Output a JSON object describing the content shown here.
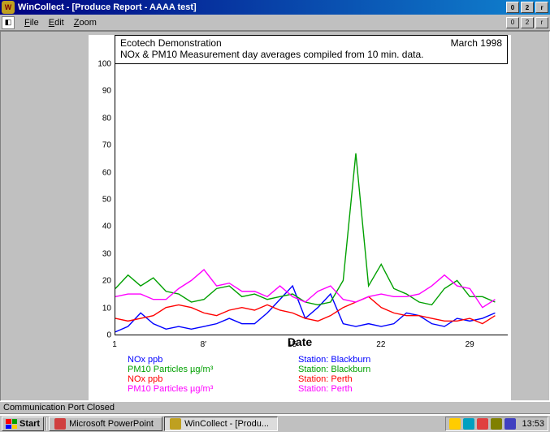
{
  "window": {
    "title": "WinCollect - [Produce Report - AAAA test]",
    "minimize": "_",
    "maximize": "❐",
    "close": "✕"
  },
  "menu": {
    "file": "File",
    "edit": "Edit",
    "zoom": "Zoom"
  },
  "mdi": {
    "minimize": "_",
    "restore": "❐",
    "close": "✕"
  },
  "chart": {
    "title_left": "Ecotech Demonstration",
    "title_right": "March 1998",
    "subtitle": "NOx & PM10 Measurement day averages compiled from 10 min. data.",
    "ylim": [
      0,
      100
    ],
    "ytick_step": 10,
    "xlabel": "Date",
    "xticks": [
      1,
      8,
      15,
      22,
      29
    ],
    "xdomain": [
      1,
      32
    ],
    "series": [
      {
        "name": "NOx ppb",
        "station": "Station: Blackburn",
        "color": "#0000ff",
        "points": [
          [
            1,
            1
          ],
          [
            2,
            3
          ],
          [
            3,
            8
          ],
          [
            4,
            4
          ],
          [
            5,
            2
          ],
          [
            6,
            3
          ],
          [
            7,
            2
          ],
          [
            8,
            3
          ],
          [
            9,
            4
          ],
          [
            10,
            6
          ],
          [
            11,
            4
          ],
          [
            12,
            4
          ],
          [
            13,
            8
          ],
          [
            14,
            13
          ],
          [
            15,
            18
          ],
          [
            16,
            6
          ],
          [
            17,
            10
          ],
          [
            18,
            15
          ],
          [
            19,
            4
          ],
          [
            20,
            3
          ],
          [
            21,
            4
          ],
          [
            22,
            3
          ],
          [
            23,
            4
          ],
          [
            24,
            8
          ],
          [
            25,
            7
          ],
          [
            26,
            4
          ],
          [
            27,
            3
          ],
          [
            28,
            6
          ],
          [
            29,
            5
          ],
          [
            30,
            6
          ],
          [
            31,
            8
          ]
        ]
      },
      {
        "name": "PM10 Particles  µg/m³",
        "station": "Station: Blackburn",
        "color": "#00a000",
        "points": [
          [
            1,
            17
          ],
          [
            2,
            22
          ],
          [
            3,
            18
          ],
          [
            4,
            21
          ],
          [
            5,
            16
          ],
          [
            6,
            15
          ],
          [
            7,
            12
          ],
          [
            8,
            13
          ],
          [
            9,
            17
          ],
          [
            10,
            18
          ],
          [
            11,
            14
          ],
          [
            12,
            15
          ],
          [
            13,
            13
          ],
          [
            14,
            14
          ],
          [
            15,
            15
          ],
          [
            16,
            12
          ],
          [
            17,
            11
          ],
          [
            18,
            12
          ],
          [
            19,
            20
          ],
          [
            20,
            67
          ],
          [
            21,
            18
          ],
          [
            22,
            26
          ],
          [
            23,
            17
          ],
          [
            24,
            15
          ],
          [
            25,
            12
          ],
          [
            26,
            11
          ],
          [
            27,
            17
          ],
          [
            28,
            20
          ],
          [
            29,
            14
          ],
          [
            30,
            14
          ],
          [
            31,
            12
          ]
        ]
      },
      {
        "name": "NOx ppb",
        "station": "Station: Perth",
        "color": "#ff0000",
        "points": [
          [
            1,
            6
          ],
          [
            2,
            5
          ],
          [
            3,
            6
          ],
          [
            4,
            7
          ],
          [
            5,
            10
          ],
          [
            6,
            11
          ],
          [
            7,
            10
          ],
          [
            8,
            8
          ],
          [
            9,
            7
          ],
          [
            10,
            9
          ],
          [
            11,
            10
          ],
          [
            12,
            9
          ],
          [
            13,
            11
          ],
          [
            14,
            9
          ],
          [
            15,
            8
          ],
          [
            16,
            6
          ],
          [
            17,
            5
          ],
          [
            18,
            7
          ],
          [
            19,
            10
          ],
          [
            20,
            12
          ],
          [
            21,
            14
          ],
          [
            22,
            10
          ],
          [
            23,
            8
          ],
          [
            24,
            7
          ],
          [
            25,
            7
          ],
          [
            26,
            6
          ],
          [
            27,
            5
          ],
          [
            28,
            5
          ],
          [
            29,
            6
          ],
          [
            30,
            4
          ],
          [
            31,
            7
          ]
        ]
      },
      {
        "name": "PM10 Particles  µg/m³",
        "station": "Station: Perth",
        "color": "#ff00ff",
        "points": [
          [
            1,
            14
          ],
          [
            2,
            15
          ],
          [
            3,
            15
          ],
          [
            4,
            13
          ],
          [
            5,
            13
          ],
          [
            6,
            17
          ],
          [
            7,
            20
          ],
          [
            8,
            24
          ],
          [
            9,
            18
          ],
          [
            10,
            19
          ],
          [
            11,
            16
          ],
          [
            12,
            16
          ],
          [
            13,
            14
          ],
          [
            14,
            18
          ],
          [
            15,
            14
          ],
          [
            16,
            12
          ],
          [
            17,
            16
          ],
          [
            18,
            18
          ],
          [
            19,
            13
          ],
          [
            20,
            12
          ],
          [
            21,
            14
          ],
          [
            22,
            15
          ],
          [
            23,
            14
          ],
          [
            24,
            14
          ],
          [
            25,
            15
          ],
          [
            26,
            18
          ],
          [
            27,
            22
          ],
          [
            28,
            18
          ],
          [
            29,
            17
          ],
          [
            30,
            10
          ],
          [
            31,
            13
          ]
        ]
      }
    ]
  },
  "status": "Communication Port Closed",
  "taskbar": {
    "start": "Start",
    "buttons": [
      {
        "label": "Microsoft PowerPoint",
        "active": false
      },
      {
        "label": "WinCollect - [Produ...",
        "active": true
      }
    ],
    "clock": "13:53"
  }
}
